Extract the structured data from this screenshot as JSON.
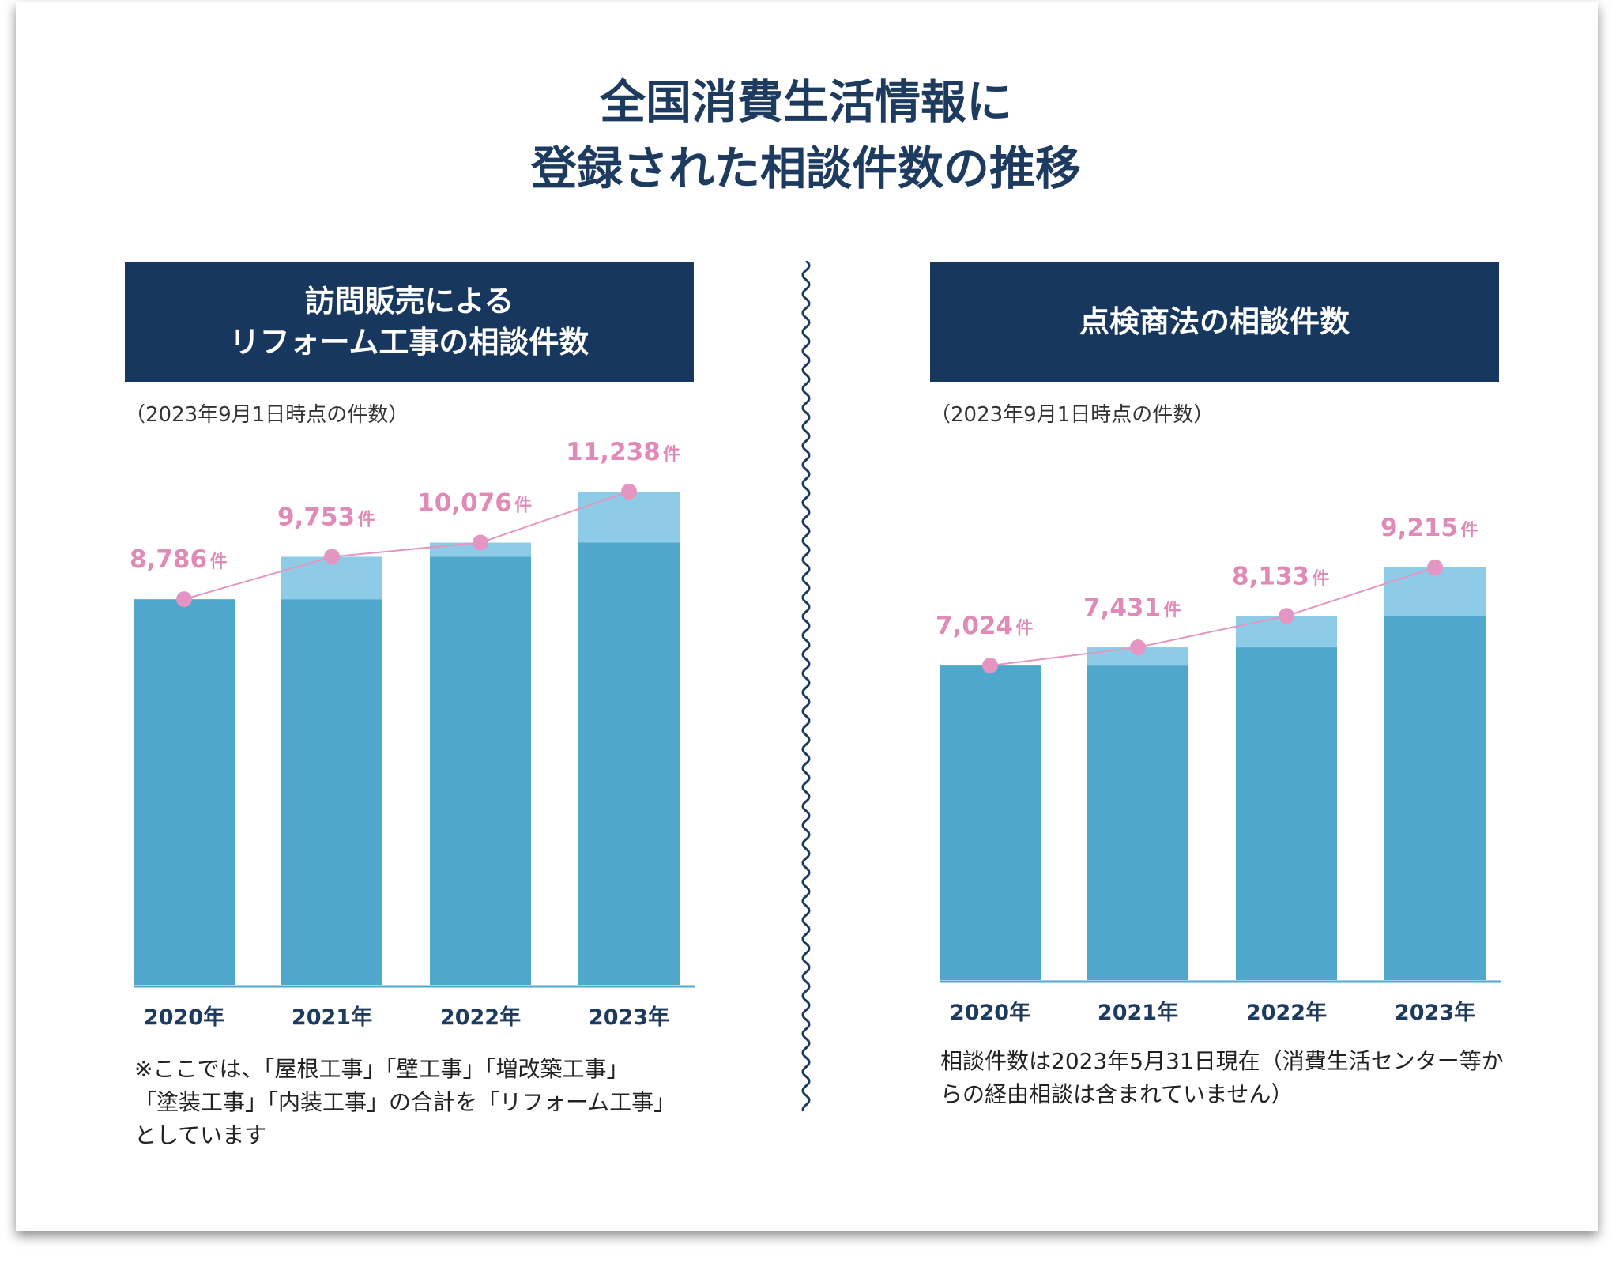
{
  "title": {
    "line1": "全国消費生活情報に",
    "line2": "登録された相談件数の推移"
  },
  "left_panel": {
    "header_line1": "訪問販売による",
    "header_line2": "リフォーム工事の相談件数",
    "as_of": "（2023年9月1日時点の件数）",
    "note_line1": "※ここでは、「屋根工事」「壁工事」「増改築工事」",
    "note_line2": "「塗装工事」「内装工事」の合計を「リフォーム工事」",
    "note_line3": "としています"
  },
  "right_panel": {
    "header": "点検商法の相談件数",
    "as_of": "（2023年9月1日時点の件数）",
    "note_line1": "相談件数は2023年5月31日現在（消費生活センター等か",
    "note_line2": "らの経由相談は含まれていません）"
  },
  "colors": {
    "navy": "#17375f",
    "bar_base": "#4fa8cc",
    "bar_increase": "#8ecbe6",
    "line_marker": "#e495c2",
    "value_label": "#e08ab8",
    "year_label": "#1d3a5f"
  },
  "chart_data": [
    {
      "type": "bar",
      "title": "訪問販売によるリフォーム工事の相談件数",
      "categories": [
        "2020年",
        "2021年",
        "2022年",
        "2023年"
      ],
      "values": [
        8786,
        9753,
        10076,
        11238
      ],
      "value_labels": [
        "8,786",
        "9,753",
        "10,076",
        "11,238"
      ],
      "unit": "件",
      "overlay": "line connecting bar tops",
      "stacked_increase_over_previous_year": true,
      "ylim": [
        0,
        11238
      ]
    },
    {
      "type": "bar",
      "title": "点検商法の相談件数",
      "categories": [
        "2020年",
        "2021年",
        "2022年",
        "2023年"
      ],
      "values": [
        7024,
        7431,
        8133,
        9215
      ],
      "value_labels": [
        "7,024",
        "7,431",
        "8,133",
        "9,215"
      ],
      "unit": "件",
      "overlay": "line connecting bar tops",
      "stacked_increase_over_previous_year": true,
      "ylim": [
        0,
        9215
      ]
    }
  ]
}
